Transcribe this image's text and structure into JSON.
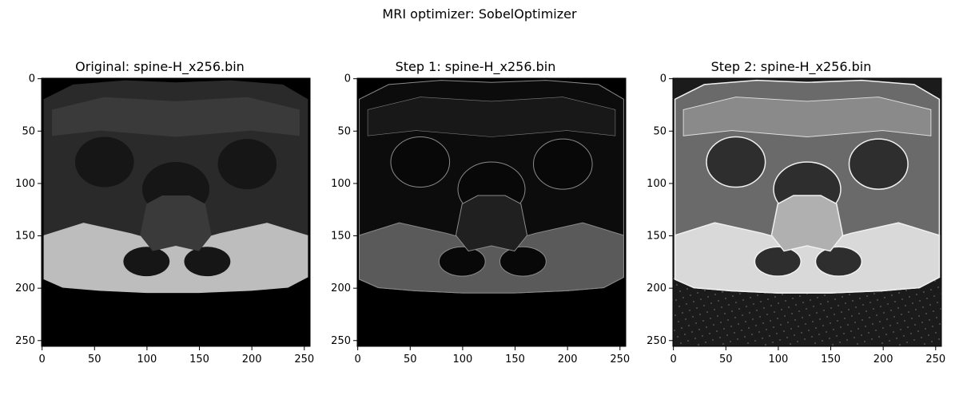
{
  "suptitle": "MRI optimizer: SobelOptimizer",
  "panels": [
    {
      "title": "Original: spine-H_x256.bin",
      "style": "original"
    },
    {
      "title": "Step 1: spine-H_x256.bin",
      "style": "sobel"
    },
    {
      "title": "Step 2: spine-H_x256.bin",
      "style": "enhanced"
    }
  ],
  "axes": {
    "x_ticks": [
      "0",
      "50",
      "100",
      "150",
      "200",
      "250"
    ],
    "y_ticks": [
      "0",
      "50",
      "100",
      "150",
      "200",
      "250"
    ]
  },
  "image_size": "256x256"
}
